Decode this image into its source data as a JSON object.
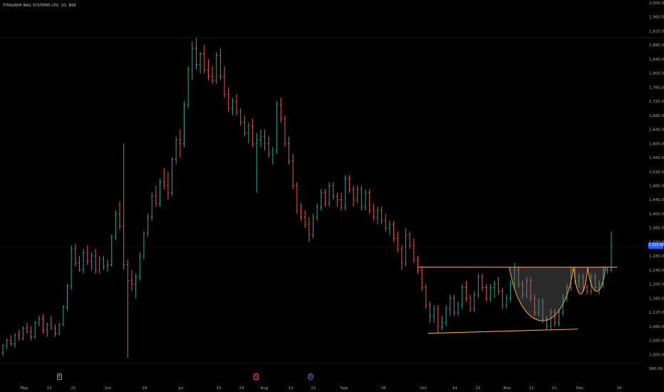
{
  "title": "TITAGARH RAIL SYSTEMS LTD, 1D, NSE",
  "last_price_label": "1,310.00",
  "event_markers": {
    "earnings": "E",
    "split": "S",
    "dividend": "D"
  },
  "colors": {
    "up": "#26a69a",
    "down": "#ef5350",
    "pattern": "#f5a623",
    "grid": "#1a1a1a",
    "axis_text": "#a7a7a7",
    "badge": "#2962ff"
  },
  "chart_data": {
    "type": "ohlc",
    "ylim": [
      960,
      2000
    ],
    "y_ticks": [
      "2,000.00",
      "1,960.00",
      "1,920.00",
      "1,880.00",
      "1,840.00",
      "1,800.00",
      "1,760.00",
      "1,720.00",
      "1,680.00",
      "1,640.00",
      "1,600.00",
      "1,560.00",
      "1,520.00",
      "1,480.00",
      "1,440.00",
      "1,400.00",
      "1,360.00",
      "1,320.00",
      "1,280.00",
      "1,240.00",
      "1,200.00",
      "1,160.00",
      "1,120.00",
      "1,080.00",
      "1,040.00",
      "1,000.00",
      "960.00"
    ],
    "x_ticks": [
      "May",
      "13",
      "21",
      "Jun",
      "18",
      "Jul",
      "15",
      "24",
      "Aug",
      "12",
      "21",
      "Sep",
      "16",
      "Oct",
      "14",
      "22",
      "Nov",
      "11",
      "21",
      "Dec",
      "16"
    ],
    "bars": [
      [
        1005,
        1030,
        995,
        1025
      ],
      [
        1025,
        1045,
        1015,
        1040
      ],
      [
        1040,
        1055,
        1025,
        1030
      ],
      [
        1030,
        1060,
        1020,
        1055
      ],
      [
        1055,
        1070,
        1040,
        1045
      ],
      [
        1045,
        1080,
        1040,
        1075
      ],
      [
        1075,
        1090,
        1060,
        1065
      ],
      [
        1065,
        1080,
        1040,
        1050
      ],
      [
        1050,
        1095,
        1045,
        1090
      ],
      [
        1090,
        1110,
        1080,
        1100
      ],
      [
        1100,
        1115,
        1060,
        1070
      ],
      [
        1070,
        1090,
        1050,
        1085
      ],
      [
        1085,
        1110,
        1070,
        1075
      ],
      [
        1075,
        1085,
        1050,
        1060
      ],
      [
        1060,
        1090,
        1055,
        1085
      ],
      [
        1085,
        1140,
        1080,
        1135
      ],
      [
        1135,
        1200,
        1125,
        1195
      ],
      [
        1195,
        1310,
        1185,
        1300
      ],
      [
        1300,
        1315,
        1250,
        1260
      ],
      [
        1260,
        1280,
        1235,
        1240
      ],
      [
        1240,
        1300,
        1230,
        1290
      ],
      [
        1290,
        1310,
        1255,
        1265
      ],
      [
        1265,
        1290,
        1240,
        1280
      ],
      [
        1280,
        1300,
        1230,
        1240
      ],
      [
        1240,
        1280,
        1230,
        1270
      ],
      [
        1270,
        1280,
        1240,
        1250
      ],
      [
        1250,
        1270,
        1235,
        1255
      ],
      [
        1255,
        1340,
        1250,
        1335
      ],
      [
        1335,
        1410,
        1325,
        1400
      ],
      [
        1400,
        1435,
        1355,
        1365
      ],
      [
        1365,
        1600,
        1240,
        1255
      ],
      [
        1255,
        1270,
        990,
        1210
      ],
      [
        1210,
        1240,
        1180,
        1200
      ],
      [
        1200,
        1230,
        1160,
        1220
      ],
      [
        1220,
        1290,
        1210,
        1280
      ],
      [
        1280,
        1350,
        1270,
        1345
      ],
      [
        1345,
        1400,
        1335,
        1390
      ],
      [
        1390,
        1460,
        1380,
        1450
      ],
      [
        1450,
        1480,
        1420,
        1430
      ],
      [
        1430,
        1500,
        1420,
        1490
      ],
      [
        1490,
        1530,
        1470,
        1480
      ],
      [
        1480,
        1520,
        1440,
        1460
      ],
      [
        1460,
        1560,
        1450,
        1555
      ],
      [
        1555,
        1620,
        1540,
        1610
      ],
      [
        1610,
        1640,
        1560,
        1600
      ],
      [
        1600,
        1720,
        1590,
        1710
      ],
      [
        1710,
        1820,
        1700,
        1810
      ],
      [
        1810,
        1890,
        1780,
        1870
      ],
      [
        1870,
        1900,
        1810,
        1825
      ],
      [
        1825,
        1860,
        1800,
        1855
      ],
      [
        1855,
        1880,
        1800,
        1810
      ],
      [
        1810,
        1840,
        1780,
        1790
      ],
      [
        1790,
        1820,
        1770,
        1780
      ],
      [
        1780,
        1860,
        1770,
        1850
      ],
      [
        1850,
        1870,
        1780,
        1790
      ],
      [
        1790,
        1820,
        1730,
        1740
      ],
      [
        1740,
        1760,
        1690,
        1700
      ],
      [
        1700,
        1730,
        1680,
        1720
      ],
      [
        1720,
        1740,
        1680,
        1690
      ],
      [
        1690,
        1700,
        1650,
        1660
      ],
      [
        1660,
        1680,
        1620,
        1630
      ],
      [
        1630,
        1660,
        1600,
        1650
      ],
      [
        1650,
        1670,
        1590,
        1600
      ],
      [
        1600,
        1630,
        1460,
        1610
      ],
      [
        1610,
        1640,
        1590,
        1620
      ],
      [
        1620,
        1640,
        1580,
        1600
      ],
      [
        1600,
        1620,
        1560,
        1570
      ],
      [
        1570,
        1590,
        1540,
        1580
      ],
      [
        1580,
        1720,
        1570,
        1710
      ],
      [
        1710,
        1730,
        1660,
        1670
      ],
      [
        1670,
        1680,
        1590,
        1600
      ],
      [
        1600,
        1620,
        1540,
        1550
      ],
      [
        1550,
        1570,
        1470,
        1480
      ],
      [
        1480,
        1490,
        1400,
        1410
      ],
      [
        1410,
        1430,
        1380,
        1390
      ],
      [
        1390,
        1410,
        1360,
        1370
      ],
      [
        1370,
        1390,
        1320,
        1340
      ],
      [
        1340,
        1400,
        1330,
        1390
      ],
      [
        1390,
        1430,
        1380,
        1420
      ],
      [
        1420,
        1470,
        1410,
        1460
      ],
      [
        1460,
        1470,
        1420,
        1430
      ],
      [
        1430,
        1490,
        1420,
        1480
      ],
      [
        1480,
        1490,
        1440,
        1450
      ],
      [
        1450,
        1460,
        1420,
        1440
      ],
      [
        1440,
        1460,
        1410,
        1420
      ],
      [
        1420,
        1510,
        1410,
        1500
      ],
      [
        1500,
        1510,
        1460,
        1470
      ],
      [
        1470,
        1480,
        1420,
        1440
      ],
      [
        1440,
        1480,
        1430,
        1470
      ],
      [
        1470,
        1480,
        1410,
        1420
      ],
      [
        1420,
        1470,
        1410,
        1460
      ],
      [
        1460,
        1470,
        1400,
        1410
      ],
      [
        1410,
        1430,
        1380,
        1390
      ],
      [
        1390,
        1420,
        1370,
        1410
      ],
      [
        1410,
        1420,
        1370,
        1380
      ],
      [
        1380,
        1400,
        1350,
        1360
      ],
      [
        1360,
        1380,
        1340,
        1370
      ],
      [
        1370,
        1380,
        1320,
        1330
      ],
      [
        1330,
        1350,
        1290,
        1300
      ],
      [
        1300,
        1310,
        1240,
        1260
      ],
      [
        1260,
        1360,
        1250,
        1340
      ],
      [
        1340,
        1350,
        1300,
        1310
      ],
      [
        1310,
        1330,
        1260,
        1270
      ],
      [
        1270,
        1280,
        1230,
        1240
      ],
      [
        1240,
        1250,
        1180,
        1190
      ],
      [
        1190,
        1200,
        1130,
        1140
      ],
      [
        1140,
        1150,
        1090,
        1110
      ],
      [
        1110,
        1140,
        1090,
        1130
      ],
      [
        1130,
        1140,
        1060,
        1080
      ],
      [
        1080,
        1110,
        1070,
        1090
      ],
      [
        1090,
        1140,
        1080,
        1130
      ],
      [
        1130,
        1170,
        1110,
        1160
      ],
      [
        1160,
        1170,
        1110,
        1120
      ],
      [
        1120,
        1150,
        1110,
        1140
      ],
      [
        1140,
        1200,
        1130,
        1190
      ],
      [
        1190,
        1210,
        1150,
        1160
      ],
      [
        1160,
        1170,
        1120,
        1130
      ],
      [
        1130,
        1180,
        1120,
        1170
      ],
      [
        1170,
        1230,
        1160,
        1220
      ],
      [
        1220,
        1230,
        1180,
        1190
      ],
      [
        1190,
        1200,
        1150,
        1160
      ],
      [
        1160,
        1200,
        1150,
        1190
      ],
      [
        1190,
        1210,
        1160,
        1200
      ],
      [
        1200,
        1220,
        1170,
        1180
      ],
      [
        1180,
        1190,
        1130,
        1140
      ],
      [
        1140,
        1170,
        1130,
        1160
      ],
      [
        1160,
        1210,
        1150,
        1200
      ],
      [
        1200,
        1260,
        1190,
        1240
      ],
      [
        1240,
        1250,
        1190,
        1200
      ],
      [
        1200,
        1210,
        1160,
        1170
      ],
      [
        1170,
        1220,
        1160,
        1210
      ],
      [
        1210,
        1220,
        1150,
        1160
      ],
      [
        1160,
        1170,
        1110,
        1120
      ],
      [
        1120,
        1160,
        1110,
        1150
      ],
      [
        1150,
        1160,
        1090,
        1100
      ],
      [
        1100,
        1110,
        1070,
        1080
      ],
      [
        1080,
        1130,
        1070,
        1120
      ],
      [
        1120,
        1130,
        1080,
        1090
      ],
      [
        1090,
        1130,
        1080,
        1120
      ],
      [
        1120,
        1170,
        1110,
        1160
      ],
      [
        1160,
        1200,
        1150,
        1190
      ],
      [
        1190,
        1250,
        1180,
        1240
      ],
      [
        1240,
        1250,
        1200,
        1210
      ],
      [
        1210,
        1230,
        1190,
        1220
      ],
      [
        1220,
        1230,
        1180,
        1190
      ],
      [
        1190,
        1200,
        1170,
        1180
      ],
      [
        1180,
        1230,
        1170,
        1220
      ],
      [
        1220,
        1230,
        1180,
        1190
      ],
      [
        1190,
        1210,
        1170,
        1200
      ],
      [
        1200,
        1250,
        1190,
        1240
      ],
      [
        1240,
        1250,
        1230,
        1240
      ],
      [
        1240,
        1350,
        1235,
        1310
      ]
    ],
    "annotations": {
      "resistance_level": 1248,
      "support_line": [
        [
          0.0,
          1060
        ],
        [
          1.0,
          1072
        ]
      ],
      "pattern": "cup and handle"
    }
  }
}
